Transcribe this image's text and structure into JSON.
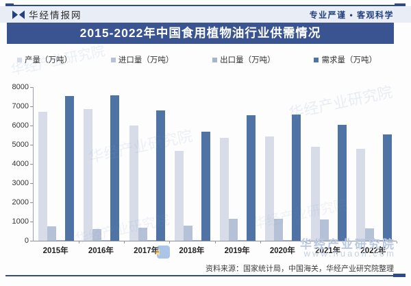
{
  "page": {
    "brand": "华经情报网",
    "slogan": "专业严谨 • 客观科学",
    "title": "2015-2022年中国食用植物油行业供需情况",
    "source_note": "资料来源：国家统计局，中国海关，华经产业研究院整理"
  },
  "colors": {
    "banner_bg": "#3a5492",
    "accent_navy": "#24407c",
    "rule_navy": "#2e4a8a",
    "axis_gray": "#8a8f99",
    "watermark_blue": "#b9c8e0"
  },
  "legend": [
    {
      "label": "产量（万吨）",
      "color": "#d7dce8"
    },
    {
      "label": "进口量（万吨）",
      "color": "#b5c1d6"
    },
    {
      "label": "出口量（万吨）",
      "color": "#a6b4cc"
    },
    {
      "label": "需求量（万吨）",
      "color": "#4e73a4"
    }
  ],
  "chart_data": {
    "type": "bar",
    "title": "2015-2022年中国食用植物油行业供需情况",
    "unit": "万吨",
    "categories": [
      "2015年",
      "2016年",
      "2017年",
      "2018年",
      "2019年",
      "2020年",
      "2021年",
      "2022年"
    ],
    "series": [
      {
        "key": "production",
        "name": "产量（万吨）",
        "color": "#d7dce8",
        "values": [
          6710,
          6860,
          6010,
          4670,
          5350,
          5430,
          4880,
          4790
        ]
      },
      {
        "key": "imports",
        "name": "进口量（万吨）",
        "color": "#b5c1d6",
        "values": [
          750,
          600,
          690,
          770,
          1130,
          1130,
          1090,
          650
        ]
      },
      {
        "key": "exports",
        "name": "出口量（万吨）",
        "color": "#a6b4cc",
        "values": [
          20,
          20,
          20,
          25,
          25,
          20,
          25,
          25
        ]
      },
      {
        "key": "demand",
        "name": "需求量（万吨）",
        "color": "#4e73a4",
        "values": [
          7520,
          7580,
          6770,
          5690,
          6520,
          6580,
          6030,
          5540
        ]
      }
    ],
    "ylim": [
      0,
      8000
    ],
    "ytick_step": 1000,
    "grid": false,
    "legend_position": "top"
  },
  "watermark": {
    "text": "华经产业研究院",
    "brand": "华经产业研究院",
    "url": "www.huaon.com"
  }
}
